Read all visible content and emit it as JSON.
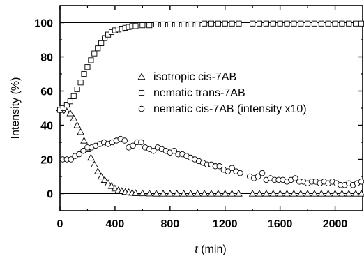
{
  "chart_data": {
    "type": "scatter",
    "xlabel_var": "t",
    "xlabel_unit": " (min)",
    "ylabel": "Intensity (%)",
    "xlim": [
      0,
      2200
    ],
    "ylim": [
      -10,
      110
    ],
    "x_ticks": [
      0,
      400,
      800,
      1200,
      1600,
      2000
    ],
    "y_ticks": [
      0,
      20,
      40,
      60,
      80,
      100
    ],
    "reference_lines_y": [
      0,
      100
    ],
    "grid": false,
    "legend_position": "center-right",
    "series": [
      {
        "name": "isotropic cis-7AB",
        "marker": "triangle",
        "points": [
          [
            0,
            50
          ],
          [
            25,
            49
          ],
          [
            50,
            48
          ],
          [
            75,
            47
          ],
          [
            100,
            44
          ],
          [
            125,
            40
          ],
          [
            150,
            36
          ],
          [
            175,
            31
          ],
          [
            200,
            26
          ],
          [
            225,
            21
          ],
          [
            250,
            17
          ],
          [
            275,
            13
          ],
          [
            300,
            10
          ],
          [
            325,
            8
          ],
          [
            350,
            6
          ],
          [
            375,
            4.5
          ],
          [
            400,
            3
          ],
          [
            425,
            2
          ],
          [
            450,
            1.5
          ],
          [
            475,
            1
          ],
          [
            500,
            0.8
          ],
          [
            525,
            0.5
          ],
          [
            550,
            0.3
          ],
          [
            600,
            0.2
          ],
          [
            650,
            0.1
          ],
          [
            700,
            0
          ],
          [
            750,
            0
          ],
          [
            800,
            0
          ],
          [
            850,
            0
          ],
          [
            900,
            0
          ],
          [
            950,
            0
          ],
          [
            1000,
            0
          ],
          [
            1050,
            0
          ],
          [
            1100,
            0
          ],
          [
            1150,
            0
          ],
          [
            1200,
            0
          ],
          [
            1250,
            0
          ],
          [
            1300,
            0
          ],
          [
            1400,
            0
          ],
          [
            1450,
            0
          ],
          [
            1500,
            0
          ],
          [
            1550,
            0
          ],
          [
            1600,
            0
          ],
          [
            1650,
            0
          ],
          [
            1700,
            0
          ],
          [
            1750,
            0
          ],
          [
            1800,
            0
          ],
          [
            1850,
            0
          ],
          [
            1900,
            0
          ],
          [
            1950,
            0
          ],
          [
            2000,
            0
          ],
          [
            2050,
            0
          ],
          [
            2100,
            0
          ],
          [
            2150,
            0
          ],
          [
            2190,
            0
          ]
        ]
      },
      {
        "name": "nematic trans-7AB",
        "marker": "square",
        "points": [
          [
            0,
            49
          ],
          [
            25,
            50
          ],
          [
            50,
            52
          ],
          [
            75,
            54
          ],
          [
            100,
            57
          ],
          [
            125,
            61
          ],
          [
            150,
            65
          ],
          [
            175,
            70
          ],
          [
            200,
            74
          ],
          [
            225,
            78
          ],
          [
            250,
            82
          ],
          [
            275,
            85
          ],
          [
            300,
            88
          ],
          [
            325,
            91
          ],
          [
            350,
            93
          ],
          [
            375,
            94.5
          ],
          [
            400,
            95.5
          ],
          [
            425,
            96
          ],
          [
            450,
            96.5
          ],
          [
            475,
            97
          ],
          [
            500,
            97.5
          ],
          [
            525,
            98
          ],
          [
            550,
            98
          ],
          [
            600,
            98.5
          ],
          [
            650,
            98.5
          ],
          [
            700,
            99
          ],
          [
            750,
            99
          ],
          [
            800,
            99
          ],
          [
            850,
            99
          ],
          [
            900,
            99
          ],
          [
            950,
            99
          ],
          [
            1000,
            99
          ],
          [
            1050,
            99.5
          ],
          [
            1100,
            99.5
          ],
          [
            1150,
            99.5
          ],
          [
            1200,
            99.5
          ],
          [
            1250,
            99.5
          ],
          [
            1300,
            99.5
          ],
          [
            1400,
            99.5
          ],
          [
            1450,
            99.5
          ],
          [
            1500,
            99.5
          ],
          [
            1550,
            99.5
          ],
          [
            1600,
            99.5
          ],
          [
            1650,
            99.5
          ],
          [
            1700,
            99.5
          ],
          [
            1750,
            99.5
          ],
          [
            1800,
            99.5
          ],
          [
            1850,
            99.5
          ],
          [
            1900,
            99.5
          ],
          [
            1950,
            99.5
          ],
          [
            2000,
            99.5
          ],
          [
            2050,
            99.5
          ],
          [
            2100,
            99.5
          ],
          [
            2150,
            99.5
          ],
          [
            2190,
            99.5
          ]
        ]
      },
      {
        "name": "nematic cis-7AB (intensity x10)",
        "marker": "circle",
        "points": [
          [
            20,
            20
          ],
          [
            50,
            20
          ],
          [
            80,
            20
          ],
          [
            110,
            22
          ],
          [
            140,
            23
          ],
          [
            170,
            25
          ],
          [
            200,
            27
          ],
          [
            230,
            27
          ],
          [
            260,
            28
          ],
          [
            290,
            29
          ],
          [
            320,
            30
          ],
          [
            350,
            29
          ],
          [
            380,
            30
          ],
          [
            410,
            31
          ],
          [
            440,
            32
          ],
          [
            470,
            31
          ],
          [
            500,
            27
          ],
          [
            530,
            28
          ],
          [
            560,
            30
          ],
          [
            590,
            30
          ],
          [
            620,
            27
          ],
          [
            650,
            26
          ],
          [
            680,
            25
          ],
          [
            710,
            27
          ],
          [
            740,
            26
          ],
          [
            770,
            25
          ],
          [
            800,
            24
          ],
          [
            830,
            25
          ],
          [
            860,
            23
          ],
          [
            890,
            23
          ],
          [
            920,
            22
          ],
          [
            950,
            21
          ],
          [
            980,
            20
          ],
          [
            1010,
            19
          ],
          [
            1040,
            18
          ],
          [
            1070,
            17
          ],
          [
            1100,
            17
          ],
          [
            1130,
            16
          ],
          [
            1160,
            16
          ],
          [
            1190,
            14
          ],
          [
            1220,
            13
          ],
          [
            1250,
            15
          ],
          [
            1280,
            13
          ],
          [
            1310,
            12
          ],
          [
            1380,
            10
          ],
          [
            1410,
            9
          ],
          [
            1440,
            10
          ],
          [
            1470,
            12
          ],
          [
            1500,
            8
          ],
          [
            1530,
            9
          ],
          [
            1560,
            8
          ],
          [
            1590,
            8
          ],
          [
            1620,
            8
          ],
          [
            1650,
            7
          ],
          [
            1680,
            8
          ],
          [
            1710,
            9
          ],
          [
            1740,
            7
          ],
          [
            1770,
            7
          ],
          [
            1800,
            6
          ],
          [
            1830,
            7
          ],
          [
            1860,
            7
          ],
          [
            1890,
            6
          ],
          [
            1920,
            7
          ],
          [
            1950,
            6
          ],
          [
            1980,
            7
          ],
          [
            2010,
            6
          ],
          [
            2040,
            5
          ],
          [
            2070,
            5
          ],
          [
            2100,
            6
          ],
          [
            2130,
            5
          ],
          [
            2160,
            6
          ],
          [
            2190,
            7
          ]
        ]
      }
    ]
  }
}
